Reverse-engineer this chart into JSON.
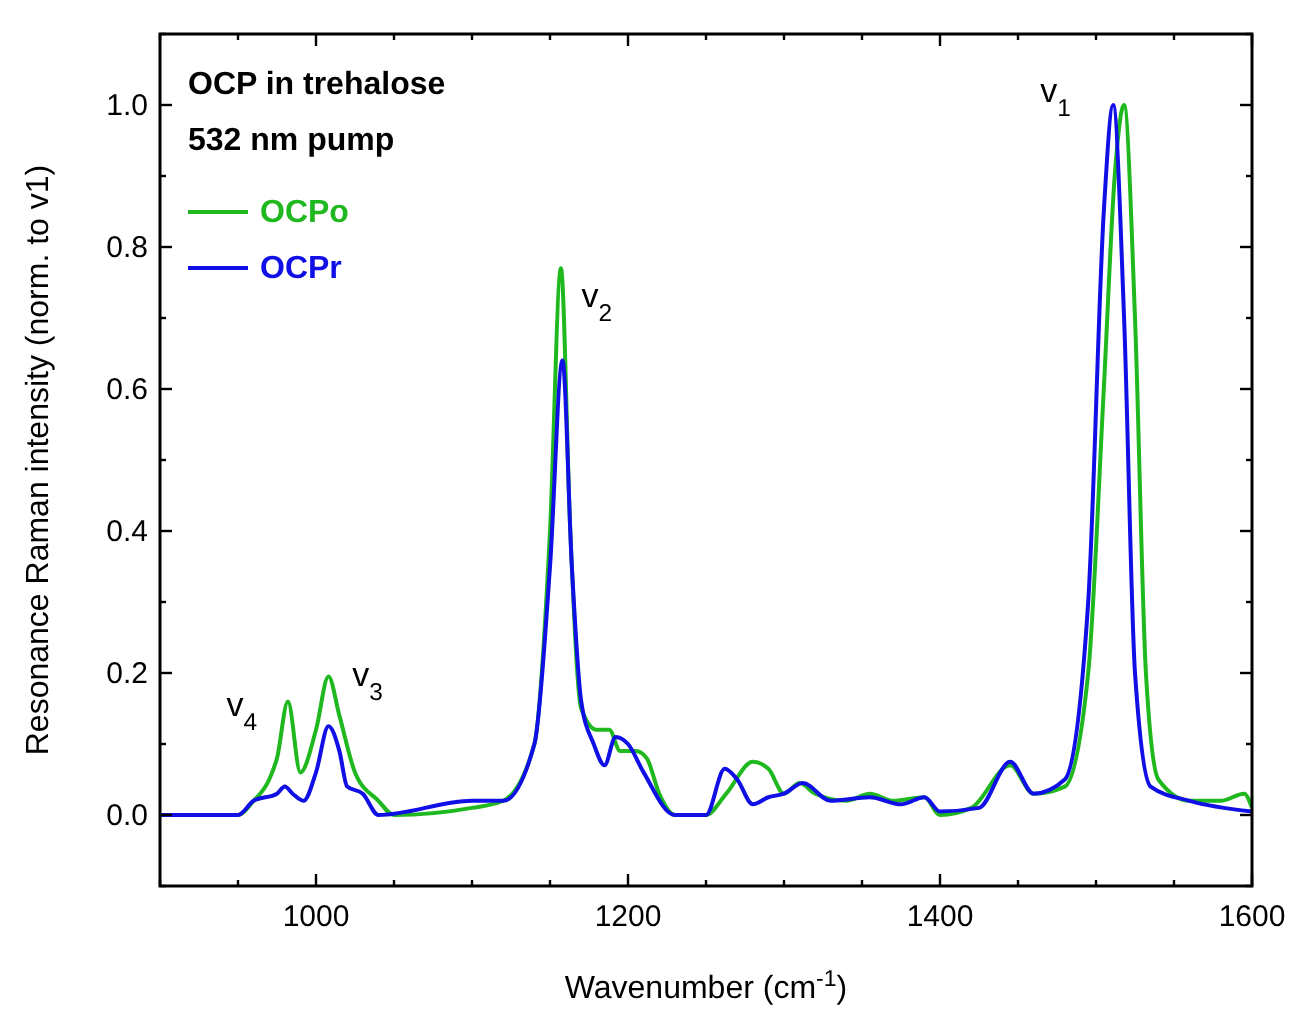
{
  "chart_data": {
    "type": "line",
    "xlabel": "Wavenumber (cm$^{-1}$)",
    "ylabel": "Resonance Raman intensity (norm. to v1)",
    "xlim": [
      900,
      1600
    ],
    "ylim": [
      -0.1,
      1.1
    ],
    "xticks": [
      {
        "value": 900,
        "label": null
      },
      {
        "value": 950,
        "label": null
      },
      1000,
      {
        "value": 1050,
        "label": null
      },
      {
        "value": 1100,
        "label": null
      },
      {
        "value": 1150,
        "label": null
      },
      1200,
      {
        "value": 1250,
        "label": null
      },
      {
        "value": 1300,
        "label": null
      },
      {
        "value": 1350,
        "label": null
      },
      1400,
      {
        "value": 1450,
        "label": null
      },
      {
        "value": 1500,
        "label": null
      },
      {
        "value": 1550,
        "label": null
      },
      1600
    ],
    "yticks": [
      {
        "value": -0.1,
        "label": null
      },
      {
        "value": 0,
        "label": "0.0"
      },
      {
        "value": 0.1,
        "label": null
      },
      {
        "value": 0.2,
        "label": "0.2"
      },
      {
        "value": 0.3,
        "label": null
      },
      {
        "value": 0.4,
        "label": "0.4"
      },
      {
        "value": 0.5,
        "label": null
      },
      {
        "value": 0.6,
        "label": "0.6"
      },
      {
        "value": 0.7,
        "label": null
      },
      {
        "value": 0.8,
        "label": "0.8"
      },
      {
        "value": 0.9,
        "label": null
      },
      {
        "value": 1,
        "label": "1.0"
      },
      {
        "value": 1.1,
        "label": null
      }
    ],
    "legend": "top left",
    "line_style": "solid",
    "annotations": [
      "OCP in trehalose",
      "532 nm pump",
      "v$_{1}$",
      "v$_{2}$",
      "v$_{3}$",
      "v$_{4}$"
    ],
    "series": [
      {
        "name": "OCPo",
        "color": "#1fb81f",
        "x": [
          900,
          950,
          960,
          970,
          975,
          982,
          990,
          1000,
          1008,
          1015,
          1025,
          1040,
          1050,
          1100,
          1120,
          1140,
          1150,
          1157,
          1163,
          1170,
          1180,
          1188,
          1195,
          1205,
          1212,
          1220,
          1230,
          1250,
          1263,
          1280,
          1290,
          1300,
          1310,
          1320,
          1340,
          1355,
          1370,
          1390,
          1400,
          1420,
          1445,
          1460,
          1480,
          1495,
          1505,
          1512,
          1518,
          1525,
          1532,
          1540,
          1560,
          1580,
          1595,
          1600
        ],
        "values": [
          0.0,
          0.0,
          0.02,
          0.05,
          0.08,
          0.16,
          0.06,
          0.12,
          0.195,
          0.14,
          0.06,
          0.02,
          0.0,
          0.01,
          0.02,
          0.1,
          0.4,
          0.77,
          0.4,
          0.15,
          0.12,
          0.12,
          0.09,
          0.09,
          0.08,
          0.03,
          0.0,
          0.0,
          0.03,
          0.075,
          0.065,
          0.03,
          0.045,
          0.03,
          0.02,
          0.03,
          0.02,
          0.025,
          0.0,
          0.01,
          0.07,
          0.03,
          0.04,
          0.2,
          0.6,
          0.9,
          1.0,
          0.7,
          0.2,
          0.05,
          0.02,
          0.02,
          0.03,
          0.01
        ]
      },
      {
        "name": "OCPr",
        "color": "#0f0fe6",
        "x": [
          900,
          950,
          960,
          975,
          980,
          985,
          992,
          1000,
          1008,
          1015,
          1020,
          1030,
          1040,
          1100,
          1120,
          1140,
          1150,
          1158,
          1164,
          1170,
          1178,
          1185,
          1192,
          1200,
          1210,
          1230,
          1250,
          1262,
          1270,
          1280,
          1290,
          1300,
          1312,
          1330,
          1355,
          1375,
          1390,
          1400,
          1425,
          1445,
          1460,
          1480,
          1495,
          1505,
          1511,
          1518,
          1525,
          1535,
          1560,
          1600
        ],
        "values": [
          0.0,
          0.0,
          0.02,
          0.03,
          0.04,
          0.03,
          0.02,
          0.06,
          0.125,
          0.09,
          0.04,
          0.03,
          0.0,
          0.02,
          0.02,
          0.1,
          0.35,
          0.64,
          0.35,
          0.16,
          0.1,
          0.07,
          0.11,
          0.1,
          0.06,
          0.0,
          0.0,
          0.065,
          0.05,
          0.015,
          0.025,
          0.03,
          0.045,
          0.02,
          0.025,
          0.015,
          0.025,
          0.005,
          0.01,
          0.075,
          0.03,
          0.05,
          0.3,
          0.85,
          1.0,
          0.7,
          0.2,
          0.04,
          0.02,
          0.005
        ]
      }
    ]
  }
}
